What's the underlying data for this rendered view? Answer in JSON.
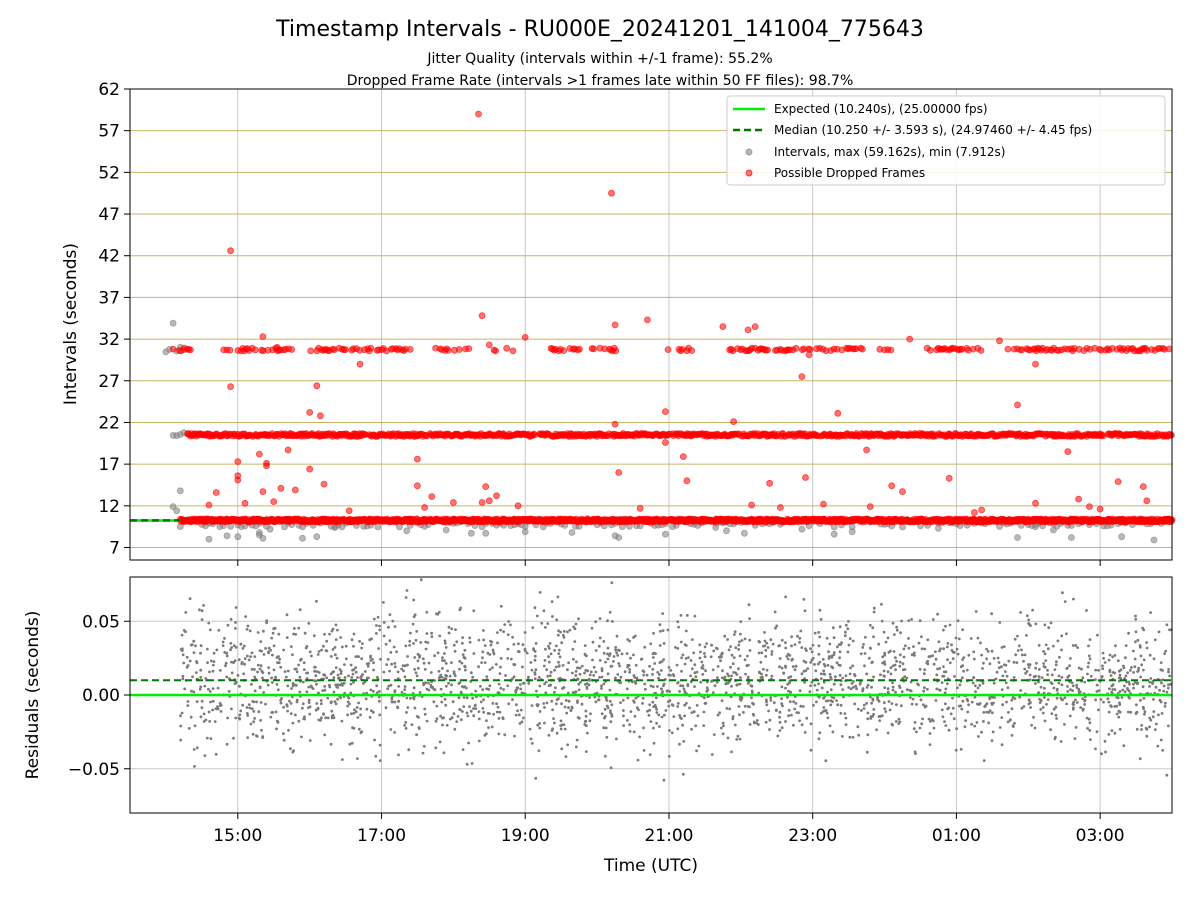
{
  "figure": {
    "title": "Timestamp Intervals - RU000E_20241201_141004_775643",
    "subtitle_1": "Jitter Quality (intervals within +/-1 frame): 55.2%",
    "subtitle_2": "Dropped Frame Rate (intervals >1 frames late within 50 FF files): 98.7%"
  },
  "colors": {
    "expected": "#00ee00",
    "median": "#007700",
    "dropped": "#ff0000",
    "intervals": "#808080",
    "frame_gridlines": "#c8b464",
    "gridlines": "#c8c8c8",
    "residual_points": "#7a7a7a"
  },
  "chart_data": [
    {
      "type": "scatter",
      "panel": "intervals",
      "ylabel": "Intervals (seconds)",
      "xlabel": "",
      "x_unit": "hours since 00:00 UTC 2024-12-01",
      "xlim": [
        13.5,
        28.0
      ],
      "ylim": [
        5.5,
        62
      ],
      "yticks": [
        7,
        12,
        17,
        22,
        27,
        32,
        37,
        42,
        47,
        52,
        57,
        62
      ],
      "xtick_positions": [
        15,
        17,
        19,
        21,
        23,
        25,
        27
      ],
      "xtick_labels": [
        "15:00",
        "17:00",
        "19:00",
        "21:00",
        "23:00",
        "01:00",
        "03:00"
      ],
      "frame_gridlines": [
        7,
        12,
        17,
        22,
        27,
        32,
        37,
        42,
        47,
        52,
        57,
        62
      ],
      "grid": true,
      "legend_position": "top-right",
      "legend": [
        "Expected (10.240s), (25.00000 fps)",
        "Median (10.250 +/- 3.593 s), (24.97460 +/- 4.45 fps)",
        "Intervals, max (59.162s), min (7.912s)",
        "Possible Dropped Frames"
      ],
      "expected_value": 10.24,
      "median_value": 10.25,
      "reference_line_xrange": [
        13.5,
        14.2
      ],
      "series": [
        {
          "name": "Possible Dropped Frames",
          "marker": "circle",
          "bands": [
            {
              "y": 10.25,
              "x_start": 14.2,
              "x_end": 28.0,
              "density": "continuous"
            },
            {
              "y": 20.5,
              "x_start": 14.3,
              "x_end": 28.0,
              "density": "dense"
            },
            {
              "y": 30.75,
              "x_start": 14.1,
              "x_end": 28.0,
              "density": "intermittent"
            }
          ],
          "outliers": [
            [
              14.9,
              42.6
            ],
            [
              14.9,
              26.3
            ],
            [
              15.0,
              17.3
            ],
            [
              15.0,
              15.6
            ],
            [
              15.0,
              15.1
            ],
            [
              15.3,
              18.2
            ],
            [
              15.4,
              16.8
            ],
            [
              15.4,
              17.1
            ],
            [
              15.35,
              13.7
            ],
            [
              15.5,
              12.5
            ],
            [
              15.1,
              12.3
            ],
            [
              14.7,
              13.6
            ],
            [
              14.6,
              12.1
            ],
            [
              15.6,
              14.1
            ],
            [
              15.8,
              13.9
            ],
            [
              15.7,
              18.7
            ],
            [
              16.0,
              16.4
            ],
            [
              16.1,
              26.4
            ],
            [
              16.0,
              23.2
            ],
            [
              16.15,
              22.8
            ],
            [
              16.2,
              14.6
            ],
            [
              15.35,
              32.3
            ],
            [
              15.55,
              31.0
            ],
            [
              16.7,
              29.0
            ],
            [
              17.5,
              17.6
            ],
            [
              17.5,
              14.4
            ],
            [
              17.7,
              13.1
            ],
            [
              17.6,
              11.8
            ],
            [
              18.0,
              12.4
            ],
            [
              18.35,
              59.0
            ],
            [
              18.4,
              34.8
            ],
            [
              18.5,
              31.3
            ],
            [
              18.45,
              14.3
            ],
            [
              18.4,
              12.4
            ],
            [
              18.5,
              12.6
            ],
            [
              18.6,
              13.2
            ],
            [
              18.9,
              12.0
            ],
            [
              19.0,
              32.2
            ],
            [
              20.2,
              49.5
            ],
            [
              20.25,
              33.7
            ],
            [
              20.25,
              21.8
            ],
            [
              20.3,
              16.0
            ],
            [
              20.7,
              34.3
            ],
            [
              20.95,
              23.3
            ],
            [
              20.95,
              19.6
            ],
            [
              21.2,
              17.9
            ],
            [
              21.25,
              15.0
            ],
            [
              20.6,
              11.7
            ],
            [
              21.75,
              33.5
            ],
            [
              21.9,
              22.1
            ],
            [
              22.1,
              33.1
            ],
            [
              22.2,
              33.5
            ],
            [
              22.4,
              14.7
            ],
            [
              22.15,
              12.1
            ],
            [
              22.55,
              11.8
            ],
            [
              22.85,
              27.5
            ],
            [
              22.95,
              30.1
            ],
            [
              22.9,
              15.4
            ],
            [
              23.35,
              23.1
            ],
            [
              23.15,
              12.2
            ],
            [
              23.75,
              18.7
            ],
            [
              23.8,
              11.9
            ],
            [
              24.1,
              14.4
            ],
            [
              24.25,
              13.7
            ],
            [
              24.35,
              32.0
            ],
            [
              24.9,
              15.3
            ],
            [
              25.25,
              11.2
            ],
            [
              25.35,
              11.5
            ],
            [
              25.6,
              31.8
            ],
            [
              25.85,
              24.1
            ],
            [
              26.1,
              29.0
            ],
            [
              26.35,
              20.6
            ],
            [
              26.55,
              18.5
            ],
            [
              26.7,
              12.8
            ],
            [
              26.85,
              11.9
            ],
            [
              27.0,
              11.6
            ],
            [
              27.25,
              14.9
            ],
            [
              27.6,
              14.3
            ],
            [
              27.65,
              12.6
            ],
            [
              26.1,
              12.3
            ],
            [
              16.55,
              11.4
            ]
          ]
        },
        {
          "name": "Intervals, max (59.162s), min (7.912s)",
          "marker": "circle",
          "bands": [
            {
              "y": 20.5,
              "x_start": 14.1,
              "x_end": 14.3,
              "density": "sparse"
            },
            {
              "y": 30.75,
              "x_start": 14.0,
              "x_end": 14.3,
              "density": "sparse"
            },
            {
              "y": 9.8,
              "x_start": 14.2,
              "x_end": 28.0,
              "density": "sparse"
            }
          ],
          "outliers": [
            [
              14.1,
              33.9
            ],
            [
              14.1,
              11.9
            ],
            [
              14.2,
              13.8
            ],
            [
              14.15,
              11.4
            ],
            [
              14.6,
              8.0
            ],
            [
              14.85,
              8.4
            ],
            [
              15.0,
              8.3
            ],
            [
              15.3,
              8.5
            ],
            [
              15.3,
              8.8
            ],
            [
              15.35,
              8.1
            ],
            [
              15.45,
              9.2
            ],
            [
              15.9,
              8.1
            ],
            [
              16.1,
              8.3
            ],
            [
              17.35,
              9.0
            ],
            [
              18.25,
              8.7
            ],
            [
              18.45,
              8.7
            ],
            [
              19.0,
              8.9
            ],
            [
              20.25,
              8.4
            ],
            [
              20.3,
              8.2
            ],
            [
              20.95,
              8.6
            ],
            [
              21.65,
              9.4
            ],
            [
              21.8,
              9.0
            ],
            [
              22.05,
              8.7
            ],
            [
              23.3,
              8.6
            ],
            [
              23.55,
              8.9
            ],
            [
              24.75,
              9.3
            ],
            [
              25.85,
              8.2
            ],
            [
              26.6,
              8.2
            ],
            [
              26.35,
              9.1
            ],
            [
              26.1,
              9.5
            ],
            [
              27.3,
              8.3
            ],
            [
              27.75,
              7.9
            ],
            [
              24.5,
              9.6
            ],
            [
              22.85,
              9.2
            ],
            [
              19.65,
              8.8
            ],
            [
              17.9,
              9.1
            ],
            [
              16.35,
              9.4
            ]
          ]
        }
      ]
    },
    {
      "type": "scatter",
      "panel": "residuals",
      "ylabel": "Residuals (seconds)",
      "xlabel": "Time (UTC)",
      "xlim": [
        13.5,
        28.0
      ],
      "ylim": [
        -0.08,
        0.08
      ],
      "yticks": [
        -0.05,
        0.0,
        0.05
      ],
      "ytick_labels": [
        "−0.05",
        "0.00",
        "0.05"
      ],
      "xtick_positions": [
        15,
        17,
        19,
        21,
        23,
        25,
        27
      ],
      "xtick_labels": [
        "15:00",
        "17:00",
        "19:00",
        "21:00",
        "23:00",
        "01:00",
        "03:00"
      ],
      "grid": true,
      "expected_line": 0.0,
      "median_line": 0.01,
      "points": {
        "x_start": 14.2,
        "x_end": 28.0,
        "count": 2600,
        "center": 0.01,
        "spread": 0.032,
        "clipped_to_ylim": true
      }
    }
  ]
}
